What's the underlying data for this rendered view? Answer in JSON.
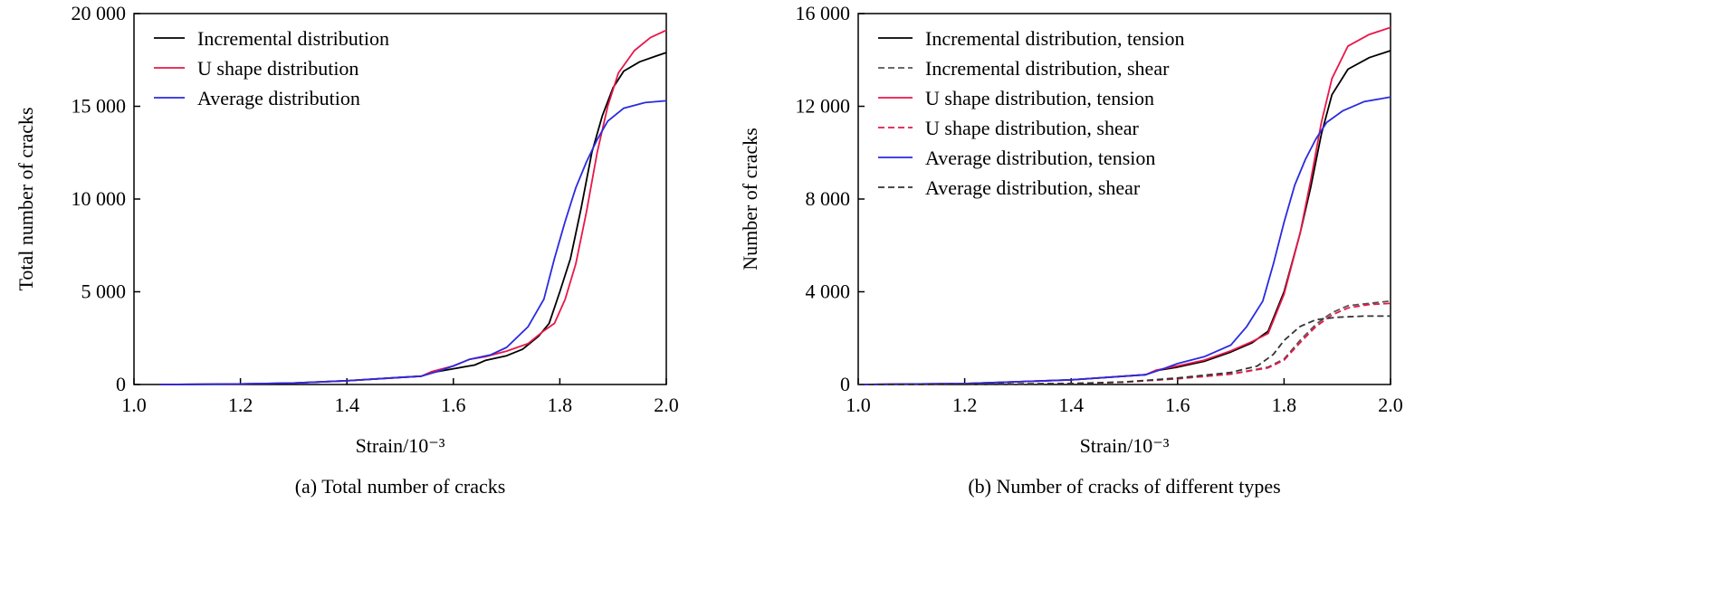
{
  "chart_data": [
    {
      "type": "line",
      "caption": "(a) Total number of cracks",
      "xlabel": "Strain/10⁻³",
      "ylabel": "Total number of cracks",
      "xlim": [
        1.0,
        2.0
      ],
      "ylim": [
        0,
        20000
      ],
      "xticks": [
        1.0,
        1.2,
        1.4,
        1.6,
        1.8,
        2.0
      ],
      "xtick_labels": [
        "1.0",
        "1.2",
        "1.4",
        "1.6",
        "1.8",
        "2.0"
      ],
      "yticks": [
        0,
        5000,
        10000,
        15000,
        20000
      ],
      "ytick_labels": [
        "0",
        "5 000",
        "10 000",
        "15 000",
        "20 000"
      ],
      "legend_position": "top-left",
      "grid": false,
      "series": [
        {
          "name": "Incremental distribution",
          "color": "#000000",
          "dash": "solid",
          "points": [
            [
              1.05,
              0
            ],
            [
              1.2,
              30
            ],
            [
              1.3,
              80
            ],
            [
              1.4,
              200
            ],
            [
              1.5,
              380
            ],
            [
              1.54,
              450
            ],
            [
              1.56,
              650
            ],
            [
              1.6,
              850
            ],
            [
              1.64,
              1050
            ],
            [
              1.66,
              1300
            ],
            [
              1.7,
              1550
            ],
            [
              1.73,
              1900
            ],
            [
              1.76,
              2600
            ],
            [
              1.78,
              3300
            ],
            [
              1.8,
              5000
            ],
            [
              1.82,
              6800
            ],
            [
              1.84,
              9500
            ],
            [
              1.86,
              12500
            ],
            [
              1.88,
              14500
            ],
            [
              1.9,
              16000
            ],
            [
              1.92,
              16900
            ],
            [
              1.95,
              17400
            ],
            [
              1.98,
              17700
            ],
            [
              2.0,
              17900
            ]
          ]
        },
        {
          "name": "U shape distribution",
          "color": "#e8174a",
          "dash": "solid",
          "points": [
            [
              1.05,
              0
            ],
            [
              1.2,
              30
            ],
            [
              1.3,
              80
            ],
            [
              1.4,
              200
            ],
            [
              1.5,
              380
            ],
            [
              1.54,
              450
            ],
            [
              1.56,
              700
            ],
            [
              1.6,
              1000
            ],
            [
              1.63,
              1350
            ],
            [
              1.66,
              1500
            ],
            [
              1.7,
              1800
            ],
            [
              1.74,
              2200
            ],
            [
              1.77,
              2900
            ],
            [
              1.79,
              3300
            ],
            [
              1.81,
              4600
            ],
            [
              1.83,
              6500
            ],
            [
              1.85,
              9300
            ],
            [
              1.87,
              12500
            ],
            [
              1.89,
              15000
            ],
            [
              1.91,
              16800
            ],
            [
              1.94,
              18000
            ],
            [
              1.97,
              18700
            ],
            [
              2.0,
              19100
            ]
          ]
        },
        {
          "name": "Average distribution",
          "color": "#2a2ae0",
          "dash": "solid",
          "points": [
            [
              1.05,
              0
            ],
            [
              1.2,
              30
            ],
            [
              1.3,
              80
            ],
            [
              1.4,
              200
            ],
            [
              1.5,
              380
            ],
            [
              1.54,
              450
            ],
            [
              1.57,
              700
            ],
            [
              1.6,
              1000
            ],
            [
              1.63,
              1350
            ],
            [
              1.67,
              1600
            ],
            [
              1.7,
              2000
            ],
            [
              1.74,
              3100
            ],
            [
              1.77,
              4600
            ],
            [
              1.79,
              6800
            ],
            [
              1.81,
              8800
            ],
            [
              1.83,
              10600
            ],
            [
              1.85,
              12000
            ],
            [
              1.87,
              13200
            ],
            [
              1.89,
              14200
            ],
            [
              1.92,
              14900
            ],
            [
              1.96,
              15200
            ],
            [
              2.0,
              15300
            ]
          ]
        }
      ]
    },
    {
      "type": "line",
      "caption": "(b) Number of cracks of different types",
      "xlabel": "Strain/10⁻³",
      "ylabel": "Number of cracks",
      "xlim": [
        1.0,
        2.0
      ],
      "ylim": [
        0,
        16000
      ],
      "xticks": [
        1.0,
        1.2,
        1.4,
        1.6,
        1.8,
        2.0
      ],
      "xtick_labels": [
        "1.0",
        "1.2",
        "1.4",
        "1.6",
        "1.8",
        "2.0"
      ],
      "yticks": [
        0,
        4000,
        8000,
        12000,
        16000
      ],
      "ytick_labels": [
        "0",
        "4 000",
        "8 000",
        "12 000",
        "16 000"
      ],
      "legend_position": "top-left",
      "grid": false,
      "series": [
        {
          "name": "Incremental distribution, tension",
          "color": "#000000",
          "dash": "solid",
          "points": [
            [
              1.0,
              0
            ],
            [
              1.2,
              40
            ],
            [
              1.4,
              200
            ],
            [
              1.54,
              420
            ],
            [
              1.56,
              600
            ],
            [
              1.6,
              750
            ],
            [
              1.65,
              1000
            ],
            [
              1.7,
              1400
            ],
            [
              1.74,
              1800
            ],
            [
              1.77,
              2300
            ],
            [
              1.8,
              4000
            ],
            [
              1.83,
              6500
            ],
            [
              1.85,
              8500
            ],
            [
              1.87,
              10800
            ],
            [
              1.89,
              12500
            ],
            [
              1.92,
              13600
            ],
            [
              1.96,
              14100
            ],
            [
              2.0,
              14400
            ]
          ]
        },
        {
          "name": "Incremental distribution, shear",
          "color": "#555555",
          "dash": "dashed",
          "points": [
            [
              1.0,
              0
            ],
            [
              1.2,
              10
            ],
            [
              1.4,
              40
            ],
            [
              1.5,
              100
            ],
            [
              1.6,
              250
            ],
            [
              1.7,
              450
            ],
            [
              1.77,
              750
            ],
            [
              1.8,
              1100
            ],
            [
              1.83,
              1900
            ],
            [
              1.86,
              2600
            ],
            [
              1.89,
              3100
            ],
            [
              1.92,
              3400
            ],
            [
              1.96,
              3500
            ],
            [
              2.0,
              3600
            ]
          ]
        },
        {
          "name": "U shape distribution, tension",
          "color": "#e8174a",
          "dash": "solid",
          "points": [
            [
              1.0,
              0
            ],
            [
              1.2,
              40
            ],
            [
              1.4,
              200
            ],
            [
              1.54,
              420
            ],
            [
              1.56,
              620
            ],
            [
              1.6,
              800
            ],
            [
              1.65,
              1050
            ],
            [
              1.7,
              1450
            ],
            [
              1.74,
              1850
            ],
            [
              1.77,
              2200
            ],
            [
              1.8,
              3900
            ],
            [
              1.83,
              6500
            ],
            [
              1.85,
              8800
            ],
            [
              1.87,
              11300
            ],
            [
              1.89,
              13200
            ],
            [
              1.92,
              14600
            ],
            [
              1.96,
              15100
            ],
            [
              2.0,
              15400
            ]
          ]
        },
        {
          "name": "U shape distribution, shear",
          "color": "#e8174a",
          "dash": "dashed",
          "points": [
            [
              1.0,
              0
            ],
            [
              1.2,
              10
            ],
            [
              1.4,
              40
            ],
            [
              1.5,
              100
            ],
            [
              1.6,
              250
            ],
            [
              1.7,
              450
            ],
            [
              1.77,
              720
            ],
            [
              1.8,
              1050
            ],
            [
              1.83,
              1800
            ],
            [
              1.86,
              2500
            ],
            [
              1.89,
              3000
            ],
            [
              1.92,
              3300
            ],
            [
              1.96,
              3450
            ],
            [
              2.0,
              3500
            ]
          ]
        },
        {
          "name": "Average distribution, tension",
          "color": "#2a2ae0",
          "dash": "solid",
          "points": [
            [
              1.0,
              0
            ],
            [
              1.2,
              40
            ],
            [
              1.4,
              200
            ],
            [
              1.54,
              420
            ],
            [
              1.57,
              650
            ],
            [
              1.6,
              900
            ],
            [
              1.65,
              1200
            ],
            [
              1.7,
              1700
            ],
            [
              1.73,
              2500
            ],
            [
              1.76,
              3600
            ],
            [
              1.78,
              5200
            ],
            [
              1.8,
              7000
            ],
            [
              1.82,
              8600
            ],
            [
              1.84,
              9700
            ],
            [
              1.86,
              10600
            ],
            [
              1.88,
              11300
            ],
            [
              1.91,
              11800
            ],
            [
              1.95,
              12200
            ],
            [
              2.0,
              12400
            ]
          ]
        },
        {
          "name": "Average distribution, shear",
          "color": "#333333",
          "dash": "dashed",
          "points": [
            [
              1.0,
              0
            ],
            [
              1.2,
              10
            ],
            [
              1.4,
              40
            ],
            [
              1.5,
              110
            ],
            [
              1.6,
              280
            ],
            [
              1.7,
              520
            ],
            [
              1.75,
              800
            ],
            [
              1.78,
              1300
            ],
            [
              1.8,
              1900
            ],
            [
              1.83,
              2500
            ],
            [
              1.86,
              2800
            ],
            [
              1.9,
              2900
            ],
            [
              1.95,
              2950
            ],
            [
              2.0,
              2950
            ]
          ]
        }
      ]
    }
  ]
}
